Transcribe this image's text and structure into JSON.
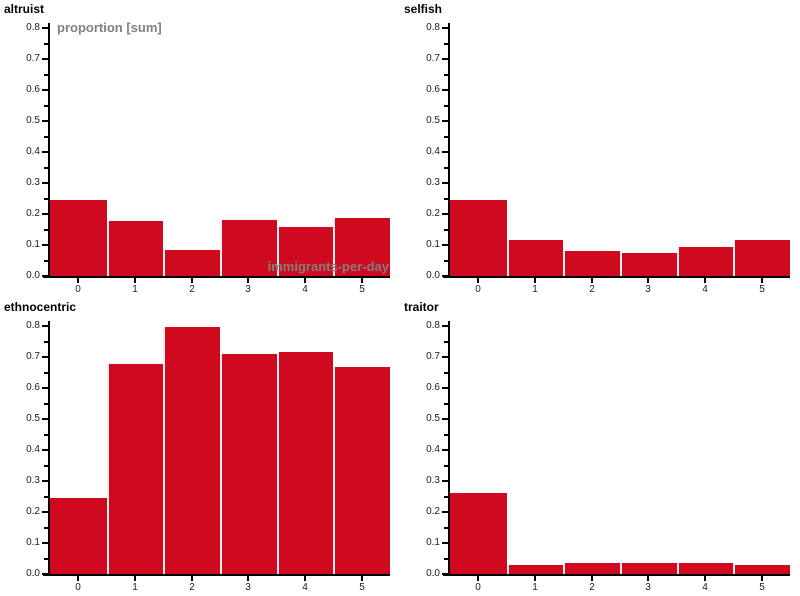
{
  "page": {
    "background": "#ffffff"
  },
  "chart_style": {
    "bar_color": "#cf0a1e",
    "bar_separator_color": "#f5efef",
    "axis_color": "#000000",
    "tick_label_color": "#1c1c1c",
    "axis_label_color": "#808080",
    "title_color": "#000000"
  },
  "chart_data": [
    {
      "type": "bar",
      "title": "altruist",
      "ylabel": "proportion [sum]",
      "xlabel": "immigrants-per-day",
      "categories": [
        "0",
        "1",
        "2",
        "3",
        "4",
        "5"
      ],
      "values": [
        0.245,
        0.178,
        0.085,
        0.181,
        0.157,
        0.188
      ],
      "ylim": [
        0,
        0.8
      ],
      "y_tick_labels": [
        "0.0",
        "0.1",
        "0.2",
        "0.3",
        "0.4",
        "0.5",
        "0.6",
        "0.7",
        "0.8"
      ],
      "y_minor_step": 0.05,
      "grid": false,
      "legend": "none"
    },
    {
      "type": "bar",
      "title": "selfish",
      "ylabel": "",
      "xlabel": "",
      "categories": [
        "0",
        "1",
        "2",
        "3",
        "4",
        "5"
      ],
      "values": [
        0.246,
        0.116,
        0.081,
        0.074,
        0.092,
        0.115
      ],
      "ylim": [
        0,
        0.8
      ],
      "y_tick_labels": [
        "0.0",
        "0.1",
        "0.2",
        "0.3",
        "0.4",
        "0.5",
        "0.6",
        "0.7",
        "0.8"
      ],
      "y_minor_step": 0.05,
      "grid": false,
      "legend": "none"
    },
    {
      "type": "bar",
      "title": "ethnocentric",
      "ylabel": "",
      "xlabel": "",
      "categories": [
        "0",
        "1",
        "2",
        "3",
        "4",
        "5"
      ],
      "values": [
        0.245,
        0.678,
        0.798,
        0.71,
        0.715,
        0.668
      ],
      "ylim": [
        0,
        0.8
      ],
      "y_tick_labels": [
        "0.0",
        "0.1",
        "0.2",
        "0.3",
        "0.4",
        "0.5",
        "0.6",
        "0.7",
        "0.8"
      ],
      "y_minor_step": 0.05,
      "grid": false,
      "legend": "none"
    },
    {
      "type": "bar",
      "title": "traitor",
      "ylabel": "",
      "xlabel": "",
      "categories": [
        "0",
        "1",
        "2",
        "3",
        "4",
        "5"
      ],
      "values": [
        0.26,
        0.028,
        0.034,
        0.037,
        0.035,
        0.03
      ],
      "ylim": [
        0,
        0.8
      ],
      "y_tick_labels": [
        "0.0",
        "0.1",
        "0.2",
        "0.3",
        "0.4",
        "0.5",
        "0.6",
        "0.7",
        "0.8"
      ],
      "y_minor_step": 0.05,
      "grid": false,
      "legend": "none"
    }
  ]
}
